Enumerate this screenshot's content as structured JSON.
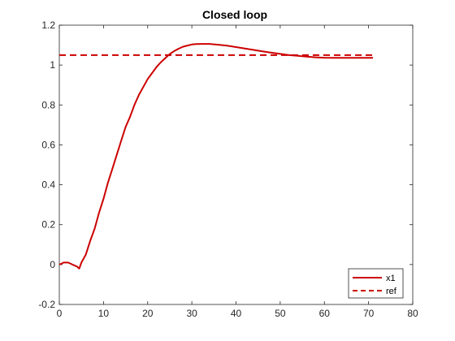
{
  "chart_data": {
    "type": "line",
    "title": "Closed loop",
    "xlabel": "",
    "ylabel": "",
    "xlim": [
      0,
      80
    ],
    "ylim": [
      -0.2,
      1.2
    ],
    "x_ticks": [
      0,
      10,
      20,
      30,
      40,
      50,
      60,
      70,
      80
    ],
    "x_tick_labels": [
      "0",
      "10",
      "20",
      "30",
      "40",
      "50",
      "60",
      "70",
      "80"
    ],
    "y_ticks": [
      -0.2,
      0,
      0.2,
      0.4,
      0.6,
      0.8,
      1,
      1.2
    ],
    "y_tick_labels": [
      "-0.2",
      "0",
      "0.2",
      "0.4",
      "0.6",
      "0.8",
      "1",
      "1.2"
    ],
    "grid": false,
    "legend_position": "bottom-right",
    "series": [
      {
        "name": "x1",
        "style": "solid",
        "color": "#cc0000",
        "x": [
          0,
          1,
          2,
          3,
          4,
          4.5,
          5,
          6,
          7,
          8,
          9,
          10,
          11,
          12,
          13,
          14,
          15,
          16,
          17,
          18,
          19,
          20,
          21,
          22,
          23,
          24,
          25,
          26,
          27,
          28,
          29,
          30,
          31,
          32,
          33,
          34,
          36,
          38,
          40,
          42,
          44,
          46,
          48,
          50,
          52,
          54,
          56,
          58,
          60,
          62,
          64,
          66,
          68,
          70,
          71
        ],
        "y": [
          0,
          0.01,
          0.01,
          0,
          -0.01,
          -0.02,
          0.01,
          0.05,
          0.12,
          0.18,
          0.26,
          0.33,
          0.41,
          0.48,
          0.55,
          0.62,
          0.69,
          0.74,
          0.8,
          0.85,
          0.89,
          0.93,
          0.96,
          0.99,
          1.015,
          1.035,
          1.055,
          1.07,
          1.082,
          1.092,
          1.098,
          1.103,
          1.105,
          1.106,
          1.106,
          1.106,
          1.102,
          1.097,
          1.09,
          1.083,
          1.076,
          1.069,
          1.062,
          1.056,
          1.05,
          1.046,
          1.042,
          1.039,
          1.037,
          1.036,
          1.036,
          1.036,
          1.036,
          1.036,
          1.036
        ]
      },
      {
        "name": "ref",
        "style": "dashed",
        "color": "#cc0000",
        "x": [
          0,
          71
        ],
        "y": [
          1.05,
          1.05
        ]
      }
    ]
  }
}
